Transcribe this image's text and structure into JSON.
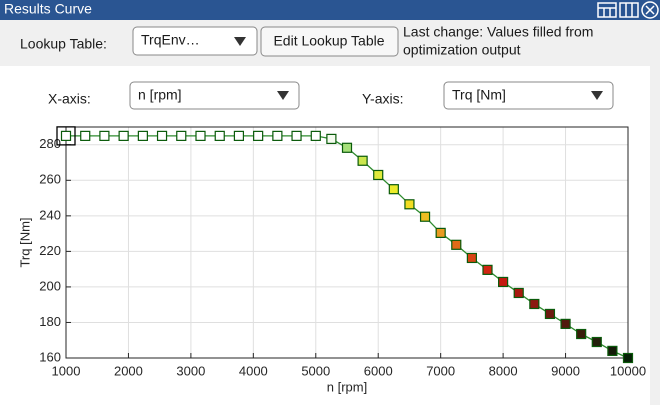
{
  "window": {
    "title": "Results Curve"
  },
  "toolbar": {
    "lookup_label": "Lookup Table:",
    "lookup_value": "TrqEnv…",
    "edit_button": "Edit Lookup Table",
    "status": [
      "Last change: Values filled from",
      "optimization output"
    ]
  },
  "axis_selectors": {
    "x_label": "X-axis:",
    "x_value": "n [rpm]",
    "y_label": "Y-axis:",
    "y_value": "Trq [Nm]"
  },
  "chart_data": {
    "type": "line",
    "x_label": "n [rpm]",
    "y_label": "Trq [Nm]",
    "x": [
      1000,
      1308,
      1615,
      1923,
      2231,
      2538,
      2846,
      3154,
      3462,
      3769,
      4077,
      4385,
      4692,
      5000,
      5250,
      5500,
      5750,
      6000,
      6250,
      6500,
      6750,
      7000,
      7250,
      7500,
      7750,
      8000,
      8250,
      8500,
      8750,
      9000,
      9250,
      9500,
      9750,
      10000
    ],
    "series": [
      {
        "color": "#2e8b2e",
        "edge_color": "#0a5a0a",
        "values": [
          285,
          285,
          285,
          285,
          285,
          285,
          285,
          285,
          285,
          285,
          285,
          285,
          285,
          285,
          283.3,
          278.3,
          271,
          263,
          255,
          246.5,
          239.5,
          230.4,
          223.7,
          216.3,
          209.6,
          202.8,
          196.6,
          190.4,
          184.8,
          179.2,
          173.5,
          169,
          164,
          160
        ],
        "marker_fill": [
          "#ffffff",
          "#ffffff",
          "#ffffff",
          "#ffffff",
          "#ffffff",
          "#ffffff",
          "#ffffff",
          "#ffffff",
          "#ffffff",
          "#ffffff",
          "#ffffff",
          "#ffffff",
          "#ffffff",
          "#ffffff",
          "#f4fbef",
          "#a6e07a",
          "#cbe64e",
          "#e0ea3c",
          "#ecec2a",
          "#f2dc22",
          "#ecbe22",
          "#e89a20",
          "#e06a18",
          "#d84414",
          "#d02612",
          "#c41a10",
          "#a81a10",
          "#8c1a10",
          "#6e1a10",
          "#521a0c",
          "#381c0a",
          "#24200c",
          "#141a08",
          "#062006"
        ]
      }
    ],
    "xlim": [
      1000,
      10000
    ],
    "ylim": [
      160,
      290
    ],
    "xticks": [
      1000,
      2000,
      3000,
      4000,
      5000,
      6000,
      7000,
      8000,
      9000,
      10000
    ],
    "yticks": [
      160,
      180,
      200,
      220,
      240,
      260,
      280
    ],
    "grid": true
  }
}
